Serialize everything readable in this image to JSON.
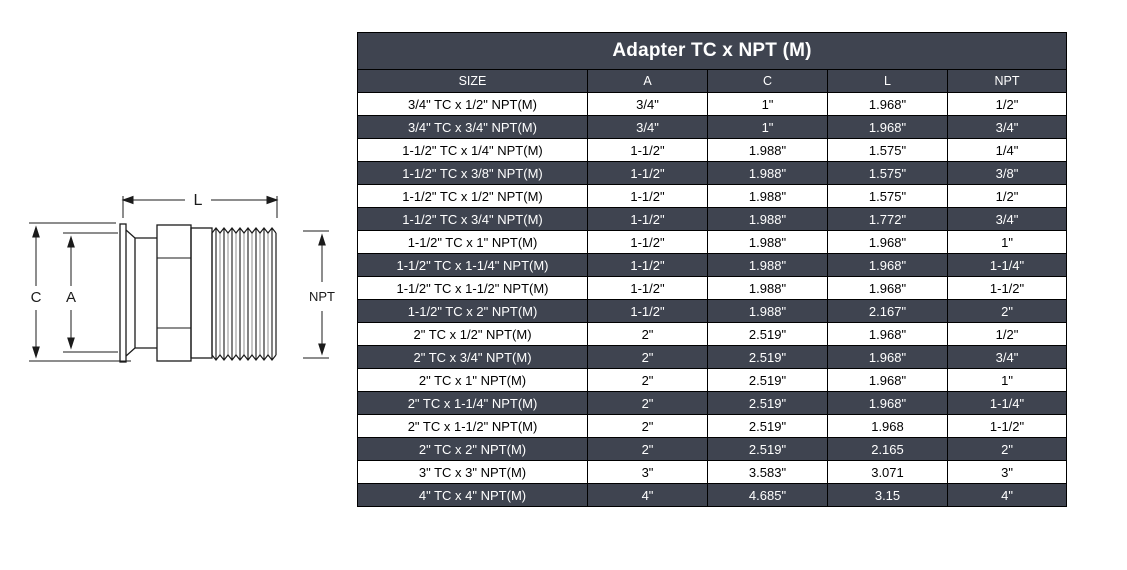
{
  "colors": {
    "table_dark": "#3f4450",
    "table_light": "#ffffff",
    "table_border": "#000000",
    "drawing_line": "#1b1b1b"
  },
  "diagram": {
    "dim_labels": {
      "length": "L",
      "outer_diameter": "C",
      "inner_diameter": "A",
      "thread": "NPT"
    }
  },
  "table": {
    "title": "Adapter TC x NPT (M)",
    "columns": [
      "SIZE",
      "A",
      "C",
      "L",
      "NPT"
    ],
    "rows": [
      [
        "3/4\" TC x 1/2\" NPT(M)",
        "3/4\"",
        "1\"",
        "1.968\"",
        "1/2\""
      ],
      [
        "3/4\" TC x 3/4\" NPT(M)",
        "3/4\"",
        "1\"",
        "1.968\"",
        "3/4\""
      ],
      [
        "1-1/2\" TC x 1/4\" NPT(M)",
        "1-1/2\"",
        "1.988\"",
        "1.575\"",
        "1/4\""
      ],
      [
        "1-1/2\" TC x 3/8\" NPT(M)",
        "1-1/2\"",
        "1.988\"",
        "1.575\"",
        "3/8\""
      ],
      [
        "1-1/2\" TC x 1/2\" NPT(M)",
        "1-1/2\"",
        "1.988\"",
        "1.575\"",
        "1/2\""
      ],
      [
        "1-1/2\" TC x 3/4\" NPT(M)",
        "1-1/2\"",
        "1.988\"",
        "1.772\"",
        "3/4\""
      ],
      [
        "1-1/2\" TC x 1\" NPT(M)",
        "1-1/2\"",
        "1.988\"",
        "1.968\"",
        "1\""
      ],
      [
        "1-1/2\" TC x 1-1/4\" NPT(M)",
        "1-1/2\"",
        "1.988\"",
        "1.968\"",
        "1-1/4\""
      ],
      [
        "1-1/2\" TC x 1-1/2\" NPT(M)",
        "1-1/2\"",
        "1.988\"",
        "1.968\"",
        "1-1/2\""
      ],
      [
        "1-1/2\" TC x 2\" NPT(M)",
        "1-1/2\"",
        "1.988\"",
        "2.167\"",
        "2\""
      ],
      [
        "2\" TC x 1/2\" NPT(M)",
        "2\"",
        "2.519\"",
        "1.968\"",
        "1/2\""
      ],
      [
        "2\" TC x 3/4\" NPT(M)",
        "2\"",
        "2.519\"",
        "1.968\"",
        "3/4\""
      ],
      [
        "2\" TC x 1\" NPT(M)",
        "2\"",
        "2.519\"",
        "1.968\"",
        "1\""
      ],
      [
        "2\" TC x 1-1/4\" NPT(M)",
        "2\"",
        "2.519\"",
        "1.968\"",
        "1-1/4\""
      ],
      [
        "2\" TC x 1-1/2\" NPT(M)",
        "2\"",
        "2.519\"",
        "1.968",
        "1-1/2\""
      ],
      [
        "2\" TC x 2\" NPT(M)",
        "2\"",
        "2.519\"",
        "2.165",
        "2\""
      ],
      [
        "3\" TC x 3\" NPT(M)",
        "3\"",
        "3.583\"",
        "3.071",
        "3\""
      ],
      [
        "4\" TC x 4\" NPT(M)",
        "4\"",
        "4.685\"",
        "3.15",
        "4\""
      ]
    ]
  }
}
